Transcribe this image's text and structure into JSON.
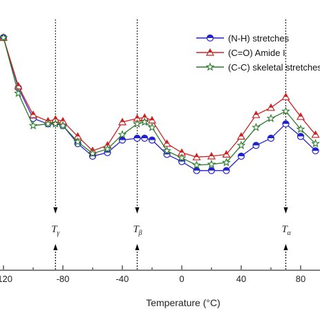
{
  "chart_data": {
    "type": "line",
    "xlabel": "Temperature (°C)",
    "ylabel": "",
    "xlim": [
      -122,
      96
    ],
    "ylim": [
      0,
      100
    ],
    "x_ticks": [
      -120,
      -80,
      -40,
      0,
      40,
      80
    ],
    "x_tick_labels": [
      "-120",
      "-80",
      "-40",
      "0",
      "40",
      "80"
    ],
    "grid": false,
    "legend_position": "top-right",
    "x": [
      -120,
      -110,
      -100,
      -90,
      -85,
      -80,
      -70,
      -60,
      -50,
      -40,
      -30,
      -25,
      -20,
      -10,
      0,
      10,
      20,
      30,
      40,
      50,
      60,
      70,
      80,
      90
    ],
    "series": [
      {
        "name": "(N-H) stretches",
        "color": "#2222cc",
        "marker": "circle",
        "values": [
          96,
          68,
          51,
          48,
          48.5,
          47,
          37,
          30,
          32,
          39,
          40,
          40,
          39,
          31,
          27,
          22,
          22,
          22,
          30,
          36,
          40,
          48,
          41,
          33
        ]
      },
      {
        "name": "(C=O) Amide I",
        "color": "#cc2222",
        "marker": "triangle",
        "values": [
          96,
          69,
          53,
          49.5,
          50.5,
          49.5,
          41,
          33,
          36,
          49,
          51,
          51.5,
          50,
          37,
          32,
          29.5,
          30,
          31,
          41,
          53,
          57,
          63,
          52,
          42
        ]
      },
      {
        "name": "(C-C) skeletal stretches",
        "color": "#2a7a2a",
        "marker": "star",
        "values": [
          96,
          65,
          47,
          48,
          48,
          47,
          38,
          31.5,
          34,
          42,
          48,
          49,
          46,
          33,
          29,
          25,
          25.5,
          26.5,
          36,
          46,
          51,
          55,
          45,
          37
        ]
      }
    ],
    "annotations": [
      {
        "label": "T",
        "subscript": "γ",
        "x": -85
      },
      {
        "label": "T",
        "subscript": "β",
        "x": -30
      },
      {
        "label": "T",
        "subscript": "α",
        "x": 70
      }
    ]
  }
}
